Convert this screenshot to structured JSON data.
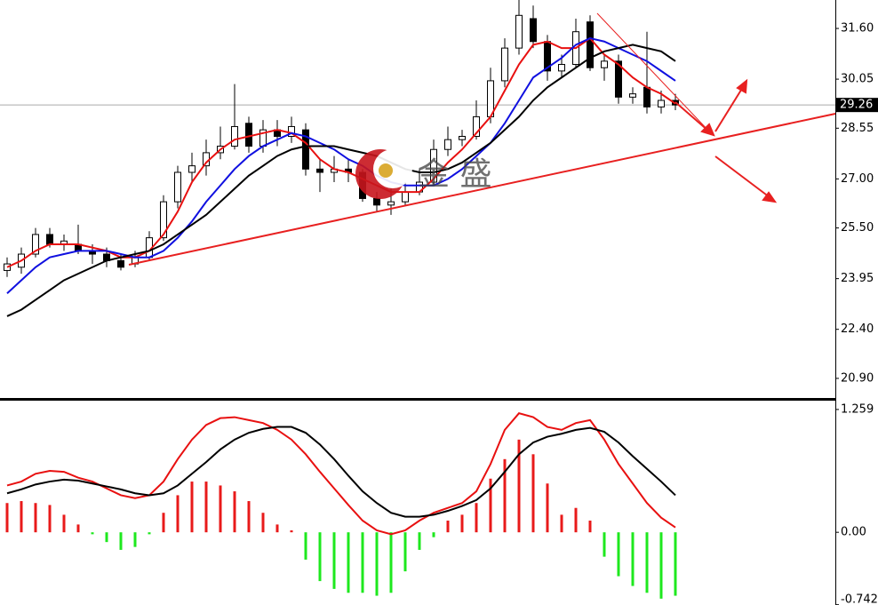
{
  "chart_data": [
    {
      "type": "candlestick",
      "open": [
        24.2,
        24.3,
        24.7,
        25.3,
        25.0,
        25.0,
        24.8,
        24.7,
        24.5,
        24.4,
        24.6,
        25.2,
        26.3,
        27.2,
        27.4,
        27.8,
        28.0,
        28.7,
        28.0,
        28.5,
        28.3,
        28.5,
        27.3,
        27.2,
        27.3,
        27.2,
        26.4,
        26.2,
        26.3,
        26.6,
        26.9,
        27.9,
        28.2,
        28.3,
        28.9,
        30.0,
        31.0,
        31.9,
        31.2,
        30.3,
        30.5,
        31.8,
        30.4,
        30.6,
        29.5,
        29.8,
        29.2,
        29.4
      ],
      "high": [
        24.6,
        24.9,
        25.5,
        25.5,
        25.3,
        25.6,
        25.0,
        24.9,
        24.7,
        24.8,
        25.4,
        26.5,
        27.4,
        27.8,
        28.2,
        28.6,
        29.9,
        28.9,
        28.8,
        28.8,
        28.9,
        28.7,
        27.6,
        27.7,
        27.6,
        27.3,
        26.6,
        26.7,
        26.9,
        27.3,
        28.2,
        28.6,
        28.5,
        29.4,
        30.4,
        31.3,
        32.5,
        32.3,
        31.4,
        30.8,
        31.9,
        32.0,
        30.8,
        30.8,
        29.8,
        31.5,
        29.7,
        29.6
      ],
      "low": [
        24.0,
        24.1,
        24.6,
        24.9,
        24.8,
        24.7,
        24.4,
        24.3,
        24.2,
        24.3,
        24.5,
        25.1,
        26.1,
        26.9,
        27.1,
        27.6,
        27.9,
        27.8,
        27.8,
        28.0,
        28.1,
        27.1,
        26.6,
        26.9,
        26.9,
        26.3,
        26.0,
        25.9,
        26.2,
        26.5,
        26.8,
        27.7,
        28.0,
        28.2,
        28.7,
        29.8,
        30.8,
        31.0,
        30.0,
        30.1,
        30.4,
        30.3,
        30.0,
        29.3,
        29.3,
        29.0,
        29.0,
        29.1
      ],
      "close": [
        24.4,
        24.7,
        25.3,
        25.0,
        25.1,
        24.8,
        24.7,
        24.5,
        24.3,
        24.6,
        25.2,
        26.3,
        27.2,
        27.4,
        27.8,
        28.0,
        28.6,
        28.0,
        28.5,
        28.3,
        28.6,
        27.3,
        27.2,
        27.3,
        27.2,
        26.4,
        26.2,
        26.3,
        26.6,
        26.9,
        27.9,
        28.2,
        28.3,
        28.9,
        30.0,
        31.0,
        32.0,
        31.2,
        30.3,
        30.5,
        31.5,
        30.4,
        30.6,
        29.5,
        29.6,
        29.2,
        29.4,
        29.26
      ],
      "up_color": "#ffffff",
      "down_color": "#000000",
      "candle_outline": "#000000",
      "series": [
        {
          "color": "#e81010",
          "values": [
            24.3,
            24.5,
            24.8,
            25.0,
            25.0,
            25.0,
            24.9,
            24.8,
            24.6,
            24.6,
            24.8,
            25.3,
            26.0,
            26.9,
            27.5,
            27.9,
            28.2,
            28.3,
            28.4,
            28.5,
            28.4,
            28.1,
            27.6,
            27.3,
            27.2,
            27.0,
            26.8,
            26.6,
            26.6,
            26.6,
            27.0,
            27.5,
            27.9,
            28.4,
            28.9,
            29.7,
            30.5,
            31.1,
            31.2,
            31.0,
            31.0,
            31.3,
            30.8,
            30.5,
            30.1,
            29.8,
            29.6,
            29.3
          ]
        },
        {
          "color": "#1010e0",
          "values": [
            23.5,
            23.9,
            24.3,
            24.6,
            24.7,
            24.8,
            24.8,
            24.8,
            24.7,
            24.6,
            24.6,
            24.8,
            25.2,
            25.7,
            26.3,
            26.8,
            27.3,
            27.7,
            28.0,
            28.2,
            28.4,
            28.3,
            28.1,
            27.9,
            27.6,
            27.4,
            27.1,
            26.9,
            26.8,
            26.8,
            26.8,
            27.0,
            27.3,
            27.7,
            28.1,
            28.7,
            29.4,
            30.1,
            30.4,
            30.7,
            31.1,
            31.3,
            31.2,
            31.0,
            30.8,
            30.6,
            30.3,
            30.0
          ]
        },
        {
          "color": "#000000",
          "values": [
            22.8,
            23.0,
            23.3,
            23.6,
            23.9,
            24.1,
            24.3,
            24.5,
            24.6,
            24.7,
            24.8,
            25.0,
            25.3,
            25.6,
            25.9,
            26.3,
            26.7,
            27.1,
            27.4,
            27.7,
            27.9,
            28.0,
            28.0,
            28.0,
            27.9,
            27.8,
            27.7,
            27.5,
            27.3,
            27.2,
            27.2,
            27.3,
            27.5,
            27.8,
            28.1,
            28.5,
            28.9,
            29.4,
            29.8,
            30.1,
            30.4,
            30.7,
            30.9,
            31.0,
            31.1,
            31.0,
            30.9,
            30.6
          ]
        }
      ],
      "ylim": [
        20.3,
        32.47
      ],
      "yticks": [
        {
          "value": 31.6,
          "label": "31.60"
        },
        {
          "value": 30.05,
          "label": "30.05"
        },
        {
          "value": 28.55,
          "label": "28.55"
        },
        {
          "value": 27.0,
          "label": "27.00"
        },
        {
          "value": 25.5,
          "label": "25.50"
        },
        {
          "value": 23.95,
          "label": "23.95"
        },
        {
          "value": 22.4,
          "label": "22.40"
        },
        {
          "value": 20.9,
          "label": "20.90"
        }
      ],
      "last_price": 29.26,
      "watermark": "金 盛"
    },
    {
      "type": "macd",
      "histogram": [
        0.3,
        0.32,
        0.3,
        0.28,
        0.18,
        0.08,
        -0.02,
        -0.1,
        -0.18,
        -0.15,
        -0.02,
        0.2,
        0.38,
        0.52,
        0.52,
        0.48,
        0.42,
        0.32,
        0.2,
        0.08,
        0.02,
        -0.28,
        -0.5,
        -0.58,
        -0.62,
        -0.62,
        -0.65,
        -0.62,
        -0.4,
        -0.18,
        -0.05,
        0.12,
        0.18,
        0.3,
        0.55,
        0.75,
        0.95,
        0.8,
        0.5,
        0.18,
        0.25,
        0.12,
        -0.25,
        -0.45,
        -0.55,
        -0.62,
        -0.68,
        -0.65
      ],
      "positive_color": "#e81a1a",
      "negative_color": "#1ee81e",
      "series": [
        {
          "color": "#e81010",
          "values": [
            0.48,
            0.52,
            0.6,
            0.63,
            0.62,
            0.56,
            0.52,
            0.45,
            0.38,
            0.35,
            0.38,
            0.52,
            0.75,
            0.95,
            1.1,
            1.17,
            1.18,
            1.15,
            1.12,
            1.05,
            0.95,
            0.8,
            0.62,
            0.45,
            0.28,
            0.12,
            0.02,
            -0.02,
            0.02,
            0.12,
            0.2,
            0.25,
            0.3,
            0.42,
            0.7,
            1.05,
            1.22,
            1.18,
            1.08,
            1.05,
            1.12,
            1.15,
            0.95,
            0.7,
            0.5,
            0.3,
            0.15,
            0.05
          ]
        },
        {
          "color": "#000000",
          "values": [
            0.4,
            0.44,
            0.49,
            0.52,
            0.54,
            0.53,
            0.5,
            0.47,
            0.44,
            0.4,
            0.38,
            0.4,
            0.48,
            0.6,
            0.72,
            0.85,
            0.95,
            1.02,
            1.06,
            1.08,
            1.08,
            1.02,
            0.9,
            0.75,
            0.58,
            0.42,
            0.3,
            0.2,
            0.16,
            0.16,
            0.18,
            0.22,
            0.27,
            0.33,
            0.45,
            0.62,
            0.8,
            0.92,
            0.98,
            1.01,
            1.05,
            1.07,
            1.03,
            0.92,
            0.78,
            0.65,
            0.52,
            0.38
          ]
        }
      ],
      "ylim": [
        -0.745,
        1.34
      ],
      "yticks": [
        1.259,
        {
          "value": 0,
          "label": "0.00"
        },
        -0.742
      ]
    }
  ]
}
